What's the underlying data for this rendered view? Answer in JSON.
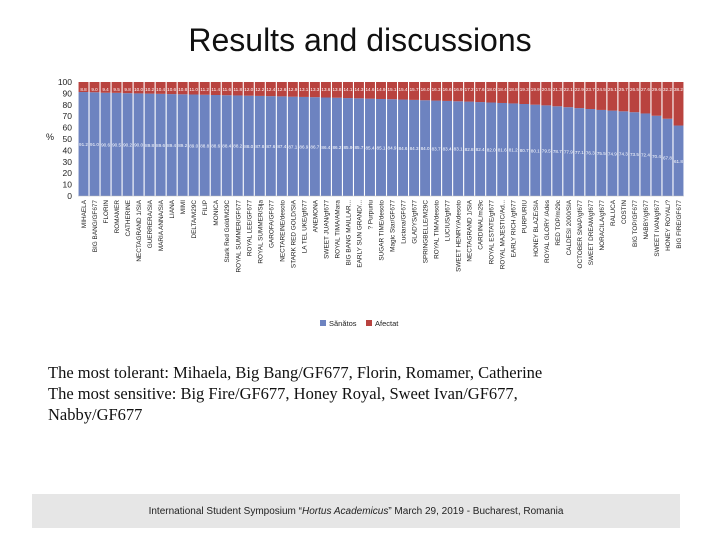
{
  "slide": {
    "title": "Results and discussions",
    "conclusion_tolerant": "The most tolerant: Mihaela, Big Bang/GF677, Florin, Romamer, Catherine",
    "conclusion_sensitive_1": "The most sensitive: Big Fire/GF677, Honey Royal, Sweet Ivan/GF677,",
    "conclusion_sensitive_2": "Nabby/GF677",
    "footer_pre": "International Student Symposium “",
    "footer_em": "Hortus Academicus",
    "footer_post": "” March 29, 2019 - Bucharest, Romania"
  },
  "chart_data": {
    "type": "bar",
    "stacked": true,
    "ylabel": "%",
    "ylim": [
      0,
      100
    ],
    "yticks": [
      "100",
      "90",
      "80",
      "70",
      "60",
      "50",
      "40",
      "30",
      "20",
      "10",
      "0"
    ],
    "legend_position": "bottom",
    "categories": [
      "MIHAELA",
      "BIG BANG/GF677",
      "FLORIN",
      "ROMAMER",
      "CATHERINE",
      "NECTAGRAND 1/SIA",
      "GUERRERA/SIA",
      "MARIA ANNA/SIA",
      "LIANA",
      "MIMI",
      "DELTA/M29C",
      "FILIP",
      "MONICA",
      "Stark Red Gold/M29C",
      "ROYAL SUMMER/GF677",
      "ROYAL LEE/GF677",
      "ROYAL SUMMER/Sija",
      "GAROFA/GF677",
      "NECTAREINE/desoto",
      "STARK RED GOLD/SIA",
      "LA TEL UKE/gf677",
      "ANEMONA",
      "SWEET JUAN/gf677",
      "ROYAL TIMA/AMara",
      "BIG BANG MAILLAR...",
      "EARLY SUN GRAND/...",
      "? Purpuriu",
      "SUGAR TIME/desoto",
      "Magic Star/GF677",
      "Luciana/GF677",
      "GLADYS/gf677",
      "SPRINGBELLE/M29C",
      "ROYAL TIMA/desoto",
      "LUCIUS/gf677",
      "SWEET HENRY/Adesoto",
      "NECTAGRAND 1/SIA",
      "CARDINAL/m29c",
      "ROYAL ESTATE/gf677",
      "ROYAL MAJESTIC/Ad...",
      "EARLY RICH /gf677",
      "PURPURIU",
      "HONEY BLAZE/SIA",
      "ROYAL GLORY /Ades",
      "RED TOP/m29c",
      "CALDESI 2000/SIA",
      "OCTOBER SNAP/gf677",
      "SWEET DREAM/gf677",
      "NORACILA/gf677",
      "RALUCA",
      "COSTIN",
      "BIG TOP/GF677",
      "NABBY/gf677",
      "SWEET IVAN/gf677",
      "HONEY ROYAL/?",
      "BIG FIRE/GF677"
    ],
    "series": [
      {
        "name": "Sănătos",
        "color": "#6d83c0",
        "values": [
          91.2,
          91.0,
          90.6,
          90.5,
          90.2,
          90.0,
          89.8,
          89.6,
          89.4,
          89.2,
          89.0,
          88.8,
          88.6,
          88.4,
          88.2,
          88.0,
          87.8,
          87.6,
          87.4,
          87.1,
          86.9,
          86.7,
          86.4,
          86.2,
          85.9,
          85.7,
          85.4,
          85.1,
          84.9,
          84.6,
          84.3,
          84.0,
          83.7,
          83.4,
          83.1,
          82.8,
          82.4,
          82.0,
          81.6,
          81.2,
          80.7,
          80.1,
          79.5,
          78.7,
          77.9,
          77.1,
          76.3,
          75.5,
          74.9,
          74.3,
          73.5,
          72.4,
          70.4,
          67.8,
          61.8
        ]
      },
      {
        "name": "Afectat",
        "color": "#b9433f",
        "values": [
          8.8,
          9.0,
          9.4,
          9.5,
          9.8,
          10.0,
          10.2,
          10.4,
          10.6,
          10.8,
          11.0,
          11.2,
          11.4,
          11.6,
          11.8,
          12.0,
          12.2,
          12.4,
          12.6,
          12.9,
          13.1,
          13.3,
          13.6,
          13.8,
          14.1,
          14.3,
          14.6,
          14.9,
          15.1,
          15.4,
          15.7,
          16.0,
          16.3,
          16.6,
          16.9,
          17.2,
          17.6,
          18.0,
          18.4,
          18.8,
          19.3,
          19.9,
          20.5,
          21.3,
          22.1,
          22.9,
          23.7,
          24.5,
          25.1,
          25.7,
          26.5,
          27.6,
          29.6,
          32.2,
          38.2
        ]
      }
    ]
  }
}
